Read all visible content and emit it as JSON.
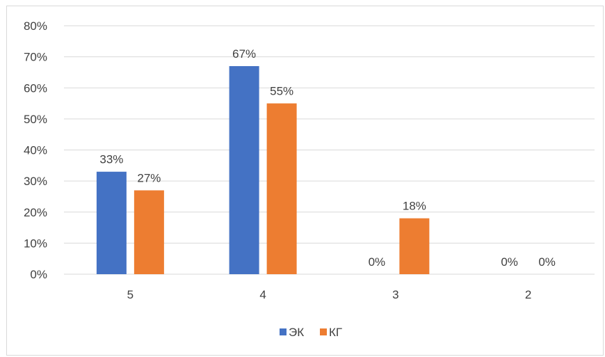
{
  "chart_data": {
    "type": "bar",
    "categories": [
      "5",
      "4",
      "3",
      "2"
    ],
    "series": [
      {
        "name": "ЭК",
        "values": [
          33,
          67,
          0,
          0
        ],
        "labels": [
          "33%",
          "67%",
          "0%",
          "0%"
        ],
        "color": "#4472C4"
      },
      {
        "name": "КГ",
        "values": [
          27,
          55,
          18,
          0
        ],
        "labels": [
          "27%",
          "55%",
          "18%",
          "0%"
        ],
        "color": "#ED7D31"
      }
    ],
    "ylim": [
      0,
      80
    ],
    "yticks": [
      "0%",
      "10%",
      "20%",
      "30%",
      "40%",
      "50%",
      "60%",
      "70%",
      "80%"
    ],
    "grid": true,
    "legend_position": "bottom",
    "title": "",
    "xlabel": "",
    "ylabel": ""
  }
}
